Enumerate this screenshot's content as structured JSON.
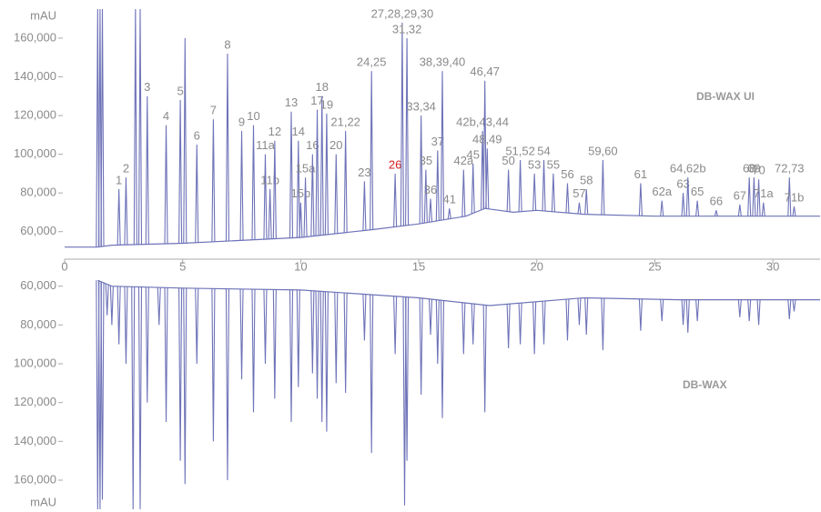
{
  "chart_data": [
    {
      "type": "chromatogram",
      "title": "DB-WAX UI",
      "y_label": "mAU",
      "color": "#6e73b8",
      "label_color": "#8a8a8a",
      "inverted": false,
      "xlim": [
        0,
        32
      ],
      "xticks": [
        0,
        5,
        10,
        15,
        20,
        25,
        30
      ],
      "ylim": [
        50000,
        175000
      ],
      "yticks": [
        {
          "value": 60000,
          "label": "60,000"
        },
        {
          "value": 80000,
          "label": "80,000"
        },
        {
          "value": 100000,
          "label": "100,000"
        },
        {
          "value": 120000,
          "label": "120,000"
        },
        {
          "value": 140000,
          "label": "140,000"
        },
        {
          "value": 160000,
          "label": "160,000"
        }
      ],
      "baseline": {
        "x": [
          0,
          1.4,
          2,
          5,
          10,
          13,
          15,
          17,
          17.8,
          19,
          20,
          22,
          25,
          30,
          32
        ],
        "values": [
          52000,
          52000,
          53000,
          54000,
          57000,
          61000,
          64000,
          68000,
          72000,
          70000,
          71000,
          69000,
          68000,
          68000,
          68000
        ]
      },
      "peaks": [
        {
          "x": 1.4,
          "value": 175000
        },
        {
          "x": 1.5,
          "value": 175000
        },
        {
          "x": 1.6,
          "value": 175000
        },
        {
          "x": 2.3,
          "value": 82000,
          "label": "1"
        },
        {
          "x": 2.6,
          "value": 88000,
          "label": "2"
        },
        {
          "x": 3.0,
          "value": 175000
        },
        {
          "x": 3.2,
          "value": 175000
        },
        {
          "x": 3.5,
          "value": 130000,
          "label": "3"
        },
        {
          "x": 4.3,
          "value": 115000,
          "label": "4"
        },
        {
          "x": 4.9,
          "value": 128000,
          "label": "5"
        },
        {
          "x": 5.1,
          "value": 160000
        },
        {
          "x": 5.6,
          "value": 105000,
          "label": "6"
        },
        {
          "x": 6.3,
          "value": 118000,
          "label": "7"
        },
        {
          "x": 6.9,
          "value": 152000,
          "label": "8"
        },
        {
          "x": 7.5,
          "value": 112000,
          "label": "9"
        },
        {
          "x": 8.0,
          "value": 115000,
          "label": "10"
        },
        {
          "x": 8.5,
          "value": 100000,
          "label": "11a"
        },
        {
          "x": 8.7,
          "value": 82000,
          "label": "11b"
        },
        {
          "x": 8.9,
          "value": 107000,
          "label": "12"
        },
        {
          "x": 9.6,
          "value": 122000,
          "label": "13"
        },
        {
          "x": 9.9,
          "value": 107000,
          "label": "14"
        },
        {
          "x": 10.0,
          "value": 75000,
          "label": "15b"
        },
        {
          "x": 10.2,
          "value": 88000,
          "label": "15a"
        },
        {
          "x": 10.5,
          "value": 100000,
          "label": "16"
        },
        {
          "x": 10.7,
          "value": 123000,
          "label": "17"
        },
        {
          "x": 10.9,
          "value": 130000,
          "label": "18"
        },
        {
          "x": 11.1,
          "value": 121000,
          "label": "19"
        },
        {
          "x": 11.5,
          "value": 100000,
          "label": "20"
        },
        {
          "x": 11.9,
          "value": 112000,
          "label": "21,22"
        },
        {
          "x": 12.7,
          "value": 86000,
          "label": "23"
        },
        {
          "x": 13.0,
          "value": 143000,
          "label": "24,25"
        },
        {
          "x": 14.0,
          "value": 90000,
          "label": "26",
          "label_color": "#d42020"
        },
        {
          "x": 14.3,
          "value": 168000,
          "label": "27,28,29,30"
        },
        {
          "x": 14.5,
          "value": 160000,
          "label": "31,32"
        },
        {
          "x": 15.1,
          "value": 120000,
          "label": "33,34"
        },
        {
          "x": 15.3,
          "value": 92000,
          "label": "35"
        },
        {
          "x": 15.5,
          "value": 77000,
          "label": "36"
        },
        {
          "x": 15.8,
          "value": 102000,
          "label": "37"
        },
        {
          "x": 16.0,
          "value": 143000,
          "label": "38,39,40"
        },
        {
          "x": 16.3,
          "value": 72000,
          "label": "41"
        },
        {
          "x": 16.9,
          "value": 92000,
          "label": "42a"
        },
        {
          "x": 17.3,
          "value": 95000,
          "label": "45"
        },
        {
          "x": 17.7,
          "value": 112000,
          "label": "42b,43,44"
        },
        {
          "x": 17.8,
          "value": 138000,
          "label": "46,47"
        },
        {
          "x": 17.9,
          "value": 103000,
          "label": "48,49"
        },
        {
          "x": 18.8,
          "value": 92000,
          "label": "50"
        },
        {
          "x": 19.3,
          "value": 97000,
          "label": "51,52"
        },
        {
          "x": 19.9,
          "value": 90000,
          "label": "53"
        },
        {
          "x": 20.3,
          "value": 97000,
          "label": "54"
        },
        {
          "x": 20.7,
          "value": 90000,
          "label": "55"
        },
        {
          "x": 21.3,
          "value": 85000,
          "label": "56"
        },
        {
          "x": 21.8,
          "value": 75000,
          "label": "57"
        },
        {
          "x": 22.1,
          "value": 82000,
          "label": "58"
        },
        {
          "x": 22.8,
          "value": 97000,
          "label": "59,60"
        },
        {
          "x": 24.4,
          "value": 85000,
          "label": "61"
        },
        {
          "x": 25.3,
          "value": 76000,
          "label": "62a"
        },
        {
          "x": 26.2,
          "value": 80000,
          "label": "63"
        },
        {
          "x": 26.4,
          "value": 88000,
          "label": "64,62b"
        },
        {
          "x": 26.8,
          "value": 76000,
          "label": "65"
        },
        {
          "x": 27.6,
          "value": 71000,
          "label": "66"
        },
        {
          "x": 28.6,
          "value": 74000,
          "label": "67"
        },
        {
          "x": 29.0,
          "value": 88000,
          "label": "68"
        },
        {
          "x": 29.2,
          "value": 88000,
          "label": "69"
        },
        {
          "x": 29.4,
          "value": 87000,
          "label": "70"
        },
        {
          "x": 29.6,
          "value": 75000,
          "label": "71a"
        },
        {
          "x": 30.7,
          "value": 88000,
          "label": "72,73"
        },
        {
          "x": 30.9,
          "value": 73000,
          "label": "71b"
        }
      ]
    },
    {
      "type": "chromatogram",
      "title": "DB-WAX",
      "y_label": "mAU",
      "color": "#6e73b8",
      "inverted": true,
      "xlim": [
        0,
        32
      ],
      "ylim": [
        55000,
        175000
      ],
      "yticks": [
        {
          "value": 60000,
          "label": "60,000"
        },
        {
          "value": 80000,
          "label": "80,000"
        },
        {
          "value": 100000,
          "label": "100,000"
        },
        {
          "value": 120000,
          "label": "120,000"
        },
        {
          "value": 140000,
          "label": "140,000"
        },
        {
          "value": 160000,
          "label": "160,000"
        }
      ],
      "baseline": {
        "x": [
          1.4,
          2,
          5,
          10,
          15,
          18,
          22,
          26,
          32
        ],
        "values": [
          57000,
          60000,
          61000,
          62000,
          66000,
          70000,
          66000,
          67000,
          67000
        ]
      },
      "peaks": [
        {
          "x": 1.4,
          "value": 175000
        },
        {
          "x": 1.5,
          "value": 175000
        },
        {
          "x": 1.6,
          "value": 170000
        },
        {
          "x": 1.8,
          "value": 75000
        },
        {
          "x": 2.0,
          "value": 80000
        },
        {
          "x": 2.3,
          "value": 90000
        },
        {
          "x": 2.6,
          "value": 100000
        },
        {
          "x": 2.9,
          "value": 175000
        },
        {
          "x": 3.2,
          "value": 175000
        },
        {
          "x": 3.5,
          "value": 120000
        },
        {
          "x": 4.0,
          "value": 80000
        },
        {
          "x": 4.3,
          "value": 130000
        },
        {
          "x": 4.9,
          "value": 150000
        },
        {
          "x": 5.1,
          "value": 162000
        },
        {
          "x": 5.6,
          "value": 100000
        },
        {
          "x": 6.3,
          "value": 140000
        },
        {
          "x": 6.9,
          "value": 160000
        },
        {
          "x": 7.5,
          "value": 108000
        },
        {
          "x": 8.0,
          "value": 125000
        },
        {
          "x": 8.5,
          "value": 100000
        },
        {
          "x": 8.9,
          "value": 118000
        },
        {
          "x": 9.6,
          "value": 130000
        },
        {
          "x": 9.9,
          "value": 112000
        },
        {
          "x": 10.5,
          "value": 105000
        },
        {
          "x": 10.7,
          "value": 118000
        },
        {
          "x": 10.9,
          "value": 130000
        },
        {
          "x": 11.1,
          "value": 135000
        },
        {
          "x": 11.5,
          "value": 110000
        },
        {
          "x": 11.9,
          "value": 115000
        },
        {
          "x": 12.7,
          "value": 88000
        },
        {
          "x": 13.0,
          "value": 146000
        },
        {
          "x": 14.0,
          "value": 95000
        },
        {
          "x": 14.4,
          "value": 173000
        },
        {
          "x": 14.5,
          "value": 150000
        },
        {
          "x": 15.1,
          "value": 116000
        },
        {
          "x": 15.5,
          "value": 85000
        },
        {
          "x": 15.8,
          "value": 100000
        },
        {
          "x": 16.0,
          "value": 128000
        },
        {
          "x": 16.9,
          "value": 95000
        },
        {
          "x": 17.3,
          "value": 90000
        },
        {
          "x": 17.8,
          "value": 125000
        },
        {
          "x": 18.8,
          "value": 92000
        },
        {
          "x": 19.3,
          "value": 90000
        },
        {
          "x": 19.9,
          "value": 95000
        },
        {
          "x": 20.3,
          "value": 90000
        },
        {
          "x": 21.3,
          "value": 88000
        },
        {
          "x": 21.8,
          "value": 80000
        },
        {
          "x": 22.1,
          "value": 85000
        },
        {
          "x": 22.8,
          "value": 93000
        },
        {
          "x": 24.4,
          "value": 83000
        },
        {
          "x": 25.3,
          "value": 78000
        },
        {
          "x": 26.2,
          "value": 80000
        },
        {
          "x": 26.4,
          "value": 84000
        },
        {
          "x": 26.8,
          "value": 78000
        },
        {
          "x": 28.6,
          "value": 76000
        },
        {
          "x": 29.0,
          "value": 78000
        },
        {
          "x": 29.4,
          "value": 80000
        },
        {
          "x": 30.7,
          "value": 77000
        },
        {
          "x": 30.9,
          "value": 73000
        }
      ]
    }
  ]
}
